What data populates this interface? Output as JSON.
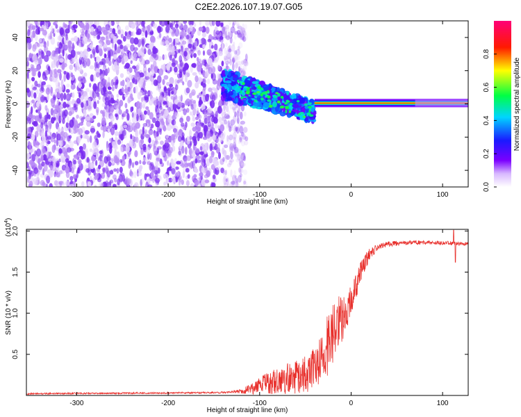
{
  "figure_title": "C2E2.2026.107.19.07.G05",
  "colors": {
    "axis": "#000000",
    "snr_line": "#e8302c",
    "noise": "#7a2cf0",
    "noise_light": "#b98af6"
  },
  "chart_data": [
    {
      "type": "heatmap",
      "name": "spectrogram",
      "title": "C2E2.2026.107.19.07.G05",
      "xlabel": "Height of straight line (km)",
      "ylabel": "Frequency (Hz)",
      "xlim": [
        -355,
        128
      ],
      "ylim": [
        -50,
        50
      ],
      "x_ticks": [
        -300,
        -200,
        -100,
        0,
        100
      ],
      "x_tick_labels": [
        "-300",
        "-200",
        "-100",
        "0",
        "100"
      ],
      "y_ticks": [
        -40,
        -20,
        0,
        20,
        40
      ],
      "y_tick_labels": [
        "-40",
        "-20",
        "0",
        "20",
        "40"
      ],
      "colorbar": {
        "label": "Normalized spectral amplitude",
        "range": [
          0,
          1
        ],
        "ticks": [
          0.0,
          0.2,
          0.4,
          0.6,
          0.8
        ],
        "tick_labels": [
          "0.0",
          "0.2",
          "0.4",
          "0.6",
          "0.8"
        ],
        "colormap": "rainbow (white-violet-blue-cyan-green-yellow-red-magenta)"
      },
      "features": [
        {
          "name": "noise-field",
          "x_range": [
            -355,
            -125
          ],
          "f_range": [
            -50,
            50
          ],
          "amplitude": 0.1
        },
        {
          "name": "transition-band",
          "x_range": [
            -140,
            -40
          ],
          "f_center_start": 12,
          "f_center_end": -5,
          "amplitude_range": [
            0.15,
            0.45
          ]
        },
        {
          "name": "carrier-line",
          "x_range": [
            -40,
            128
          ],
          "f_center": 0.5,
          "amplitude": 0.85
        }
      ]
    },
    {
      "type": "line",
      "name": "snr",
      "title": "",
      "xlabel": "Height of straight line (km)",
      "ylabel": "SNR (10 * v/v)",
      "exponent_label": "(x10",
      "exponent_power": "4",
      "exponent_close": ")",
      "xlim": [
        -355,
        128
      ],
      "ylim": [
        0,
        2.02
      ],
      "x_ticks": [
        -300,
        -200,
        -100,
        0,
        100
      ],
      "x_tick_labels": [
        "-300",
        "-200",
        "-100",
        "0",
        "100"
      ],
      "y_ticks": [
        0.5,
        1.0,
        1.5,
        2.0
      ],
      "y_tick_labels": [
        "0.5",
        "1.0",
        "1.5",
        "2.0"
      ],
      "trend_x": [
        -355,
        -300,
        -200,
        -140,
        -120,
        -105,
        -95,
        -80,
        -60,
        -45,
        -35,
        -28,
        -20,
        -12,
        -5,
        0,
        5,
        12,
        20,
        30,
        40,
        50,
        70,
        90,
        110,
        128
      ],
      "trend_y": [
        0.02,
        0.025,
        0.03,
        0.035,
        0.05,
        0.09,
        0.14,
        0.18,
        0.22,
        0.28,
        0.38,
        0.55,
        0.75,
        0.9,
        1.02,
        1.15,
        1.32,
        1.55,
        1.72,
        1.8,
        1.84,
        1.85,
        1.86,
        1.86,
        1.85,
        1.84
      ],
      "noise_x": [
        -355,
        -130,
        -120,
        -100,
        -80,
        -60,
        -40,
        -25,
        -10,
        0,
        15,
        30,
        60,
        100,
        128
      ],
      "noise_amp": [
        0.01,
        0.01,
        0.03,
        0.1,
        0.18,
        0.2,
        0.25,
        0.38,
        0.32,
        0.2,
        0.1,
        0.04,
        0.025,
        0.025,
        0.02
      ],
      "outliers": [
        {
          "x": 112,
          "y": 2.01
        },
        {
          "x": 114,
          "y": 1.62
        }
      ]
    }
  ]
}
